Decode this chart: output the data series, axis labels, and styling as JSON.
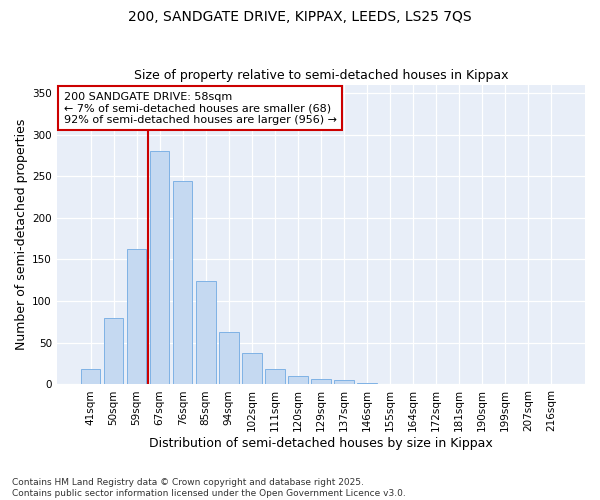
{
  "title1": "200, SANDGATE DRIVE, KIPPAX, LEEDS, LS25 7QS",
  "title2": "Size of property relative to semi-detached houses in Kippax",
  "xlabel": "Distribution of semi-detached houses by size in Kippax",
  "ylabel": "Number of semi-detached properties",
  "categories": [
    "41sqm",
    "50sqm",
    "59sqm",
    "67sqm",
    "76sqm",
    "85sqm",
    "94sqm",
    "102sqm",
    "111sqm",
    "120sqm",
    "129sqm",
    "137sqm",
    "146sqm",
    "155sqm",
    "164sqm",
    "172sqm",
    "181sqm",
    "190sqm",
    "199sqm",
    "207sqm",
    "216sqm"
  ],
  "values": [
    18,
    80,
    163,
    280,
    244,
    124,
    63,
    38,
    18,
    10,
    7,
    5,
    2,
    0,
    0,
    0,
    0,
    0,
    0,
    0,
    0
  ],
  "bar_color": "#c5d9f1",
  "bar_edge_color": "#7fb2e5",
  "vline_x": 2.5,
  "vline_color": "#cc0000",
  "annotation_text": "200 SANDGATE DRIVE: 58sqm\n← 7% of semi-detached houses are smaller (68)\n92% of semi-detached houses are larger (956) →",
  "annotation_box_facecolor": "white",
  "annotation_box_edgecolor": "#cc0000",
  "ylim": [
    0,
    360
  ],
  "yticks": [
    0,
    50,
    100,
    150,
    200,
    250,
    300,
    350
  ],
  "footer": "Contains HM Land Registry data © Crown copyright and database right 2025.\nContains public sector information licensed under the Open Government Licence v3.0.",
  "bg_color": "#e8eef8",
  "title_fontsize": 10,
  "subtitle_fontsize": 9,
  "axis_label_fontsize": 9,
  "tick_fontsize": 7.5,
  "annotation_fontsize": 8,
  "footer_fontsize": 6.5
}
